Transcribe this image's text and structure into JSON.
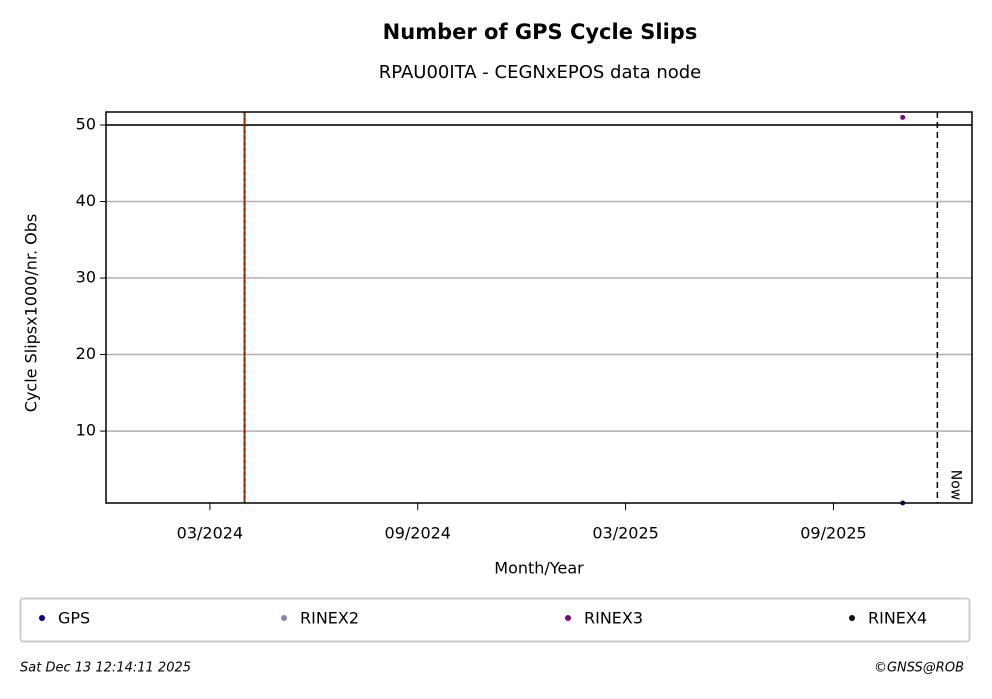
{
  "chart_data": {
    "type": "scatter",
    "title": "Number of GPS Cycle Slips",
    "subtitle": "RPAU00ITA - CEGNxEPOS data node",
    "x_label": "Month/Year",
    "y_label": "Cycle Slipsx1000/nr. Obs",
    "xlim": [
      "2023-12",
      "2026-01"
    ],
    "xticks": [
      {
        "value": "2024-03",
        "label": "03/2024"
      },
      {
        "value": "2024-09",
        "label": "09/2024"
      },
      {
        "value": "2025-03",
        "label": "03/2025"
      },
      {
        "value": "2025-09",
        "label": "09/2025"
      }
    ],
    "ylim": [
      0.6,
      51.7
    ],
    "yticks": [
      10,
      20,
      30,
      40,
      50
    ],
    "grid": true,
    "threshold": 50,
    "event_line": {
      "x": "2024-04",
      "colors": [
        "#008000",
        "#d00000"
      ]
    },
    "now_line": {
      "x": "2025-12",
      "label": "Now"
    },
    "series": [
      {
        "name": "GPS",
        "color": "#0000a0",
        "x": [
          "2025-11"
        ],
        "values": [
          0.6
        ]
      },
      {
        "name": "RINEX2",
        "color": "#8080c0",
        "x": [],
        "values": []
      },
      {
        "name": "RINEX3",
        "color": "#800080",
        "x": [
          "2025-11"
        ],
        "values": [
          51
        ]
      },
      {
        "name": "RINEX4",
        "color": "#200020",
        "x": [],
        "values": []
      }
    ],
    "timestamp": "Sat Dec 13 12:14:11 2025",
    "credit": "©GNSS@ROB"
  }
}
